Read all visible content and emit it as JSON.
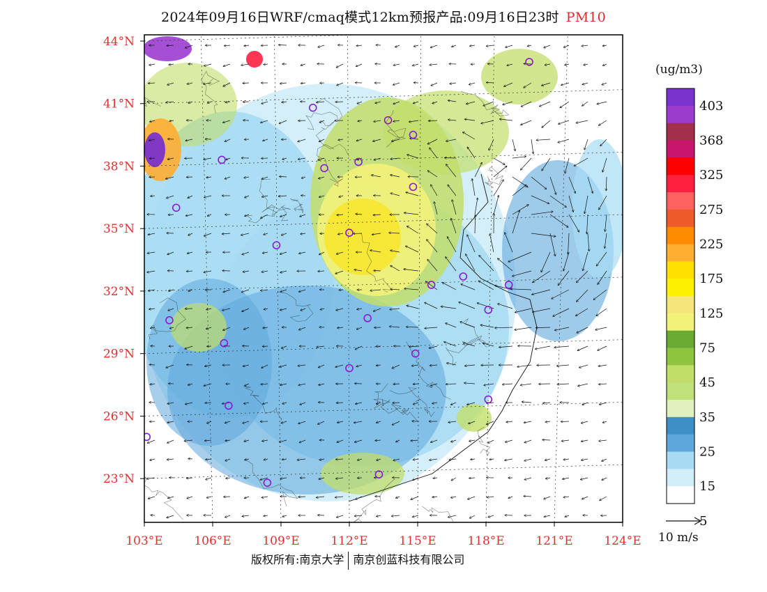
{
  "header": {
    "title": "2024年09月16日WRF/cmaq模式12km预报产品:09月16日23时",
    "pollutant": "PM10"
  },
  "map": {
    "lon_ticks": [
      "103°E",
      "106°E",
      "109°E",
      "112°E",
      "115°E",
      "118°E",
      "121°E",
      "124°E"
    ],
    "lat_ticks": [
      "44°N",
      "41°N",
      "38°N",
      "35°N",
      "32°N",
      "29°N",
      "26°N",
      "23°N"
    ],
    "lon_range": [
      103,
      124
    ],
    "lat_range": [
      20.9,
      44.3
    ],
    "projection_note": "Lambert-like curved graticule",
    "city_markers": [
      {
        "lon": 119.9,
        "lat": 43.0
      },
      {
        "lon": 110.4,
        "lat": 40.8
      },
      {
        "lon": 113.7,
        "lat": 40.2
      },
      {
        "lon": 114.8,
        "lat": 39.5
      },
      {
        "lon": 112.4,
        "lat": 38.2
      },
      {
        "lon": 110.9,
        "lat": 37.9
      },
      {
        "lon": 114.8,
        "lat": 37.0
      },
      {
        "lon": 106.4,
        "lat": 38.3
      },
      {
        "lon": 104.4,
        "lat": 36.0
      },
      {
        "lon": 112.0,
        "lat": 34.8
      },
      {
        "lon": 108.8,
        "lat": 34.2
      },
      {
        "lon": 115.6,
        "lat": 32.3
      },
      {
        "lon": 117.0,
        "lat": 32.7
      },
      {
        "lon": 119.0,
        "lat": 32.3
      },
      {
        "lon": 118.1,
        "lat": 31.1
      },
      {
        "lon": 112.8,
        "lat": 30.7
      },
      {
        "lon": 104.1,
        "lat": 30.6
      },
      {
        "lon": 106.5,
        "lat": 29.5
      },
      {
        "lon": 112.0,
        "lat": 28.3
      },
      {
        "lon": 114.9,
        "lat": 29.0
      },
      {
        "lon": 118.1,
        "lat": 26.8
      },
      {
        "lon": 106.7,
        "lat": 26.5
      },
      {
        "lon": 103.1,
        "lat": 25.0
      },
      {
        "lon": 108.4,
        "lat": 22.8
      },
      {
        "lon": 113.3,
        "lat": 23.2
      }
    ]
  },
  "legend": {
    "unit": "(ug/m3)",
    "levels": [
      "403",
      "368",
      "325",
      "275",
      "225",
      "175",
      "125",
      "75",
      "45",
      "35",
      "25",
      "15",
      "5"
    ],
    "colors": [
      "#7a33cc",
      "#9b3ccf",
      "#a3304a",
      "#c8156e",
      "#ff0000",
      "#ff2040",
      "#ff6060",
      "#ee5a2a",
      "#ff8c00",
      "#ffad33",
      "#ffe000",
      "#fff200",
      "#f5e67a",
      "#f2f27a",
      "#6aaa32",
      "#8ec43e",
      "#c2de6a",
      "#bfe07a",
      "#e2efbf",
      "#3d8fc6",
      "#5fa8dc",
      "#a6dbf3",
      "#d2eef9",
      "#ffffff"
    ]
  },
  "wind": {
    "reference_label": "10 m/s"
  },
  "footer": {
    "copyright_left": "版权所有:南京大学",
    "copyright_right": "南京创蓝科技有限公司"
  }
}
